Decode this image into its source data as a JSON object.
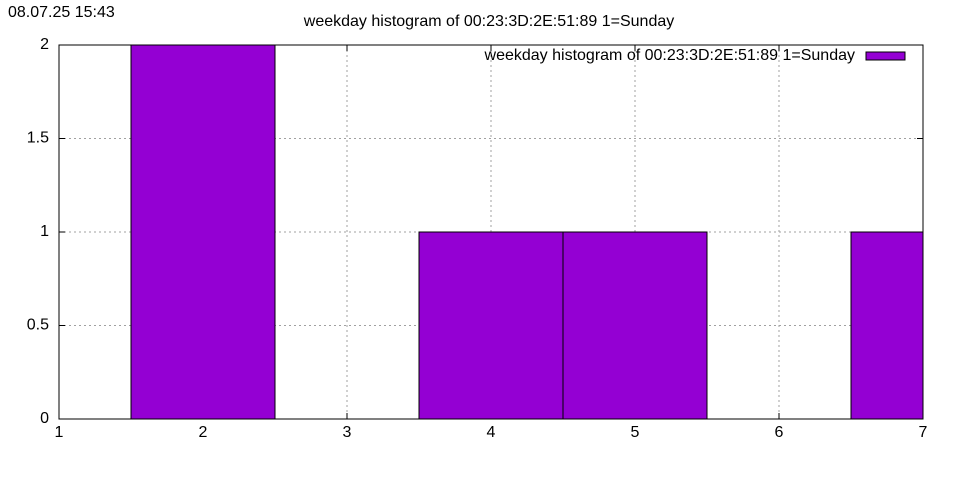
{
  "timestamp": "08.07.25 15:43",
  "chart_data": {
    "type": "bar",
    "title": "weekday histogram of 00:23:3D:2E:51:89 1=Sunday",
    "x": [
      2,
      4,
      5,
      7
    ],
    "series": [
      {
        "name": "weekday histogram of 00:23:3D:2E:51:89 1=Sunday",
        "color": "#9400d3",
        "values": [
          2,
          1,
          1,
          1
        ]
      }
    ],
    "xlim": [
      1,
      7
    ],
    "xticks": [
      1,
      2,
      3,
      4,
      5,
      6,
      7
    ],
    "ylim": [
      0,
      2
    ],
    "yticks": [
      0,
      0.5,
      1,
      1.5,
      2
    ],
    "grid": true,
    "legend": "top-right"
  }
}
